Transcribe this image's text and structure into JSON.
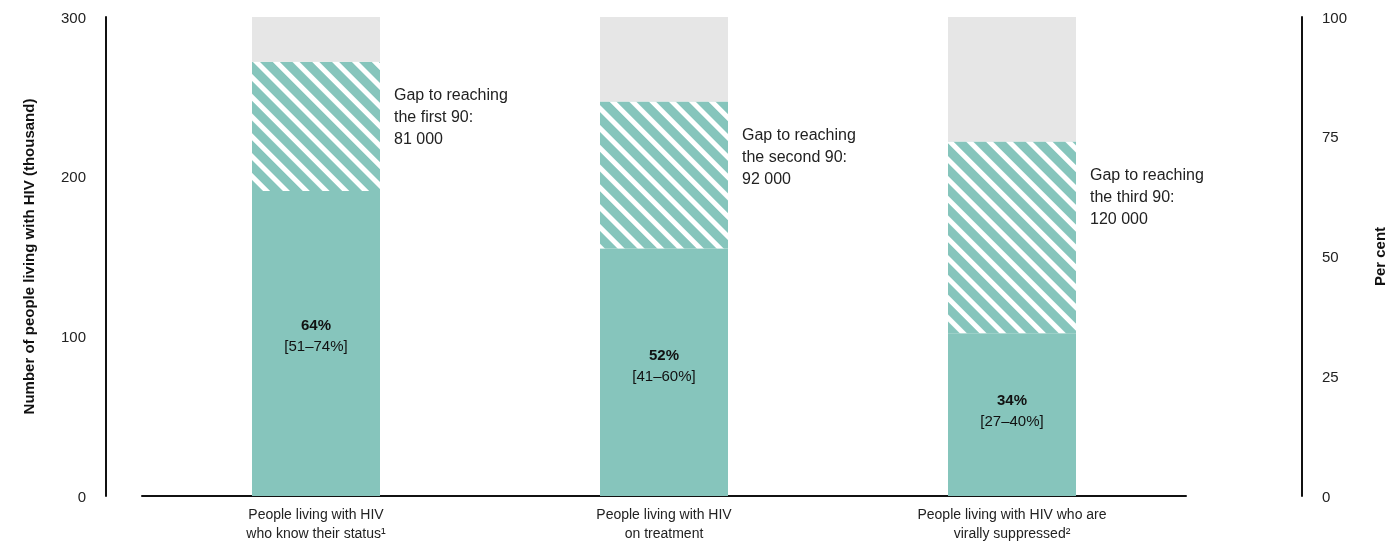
{
  "chart_data": {
    "type": "bar",
    "stacked": true,
    "categories": [
      "People living with HIV\nwho know their status¹",
      "People living with HIV\non treatment",
      "People living with HIV who are\nvirally suppressed²"
    ],
    "series": [
      {
        "color": "#86c5bc",
        "values": [
          191,
          155,
          102
        ]
      },
      {
        "color": "#86c5bc",
        "values": [
          81,
          92,
          120
        ]
      },
      {
        "color": "#e6e6e6",
        "values": [
          28,
          53,
          78
        ]
      }
    ],
    "ylabel": "Number of people living with HIV (thousand)",
    "ylim": [
      0,
      300
    ],
    "yticks": [
      0,
      100,
      200,
      300
    ],
    "y2label": "Per cent",
    "y2lim": [
      0,
      100
    ],
    "y2ticks": [
      0,
      25,
      50,
      75,
      100
    ],
    "annotations": [
      "64%",
      "52%",
      "34%",
      "[51–74%]",
      "[41–60%]",
      "[27–40%]",
      "Gap to reaching\nthe first 90:\n81 000",
      "Gap to reaching\nthe second 90:\n92 000",
      "Gap to reaching\nthe third 90:\n120 000"
    ],
    "grid": false
  }
}
